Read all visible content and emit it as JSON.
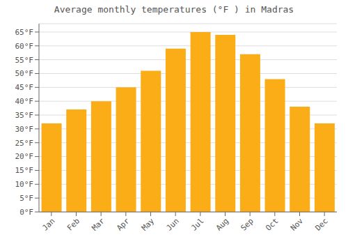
{
  "chart_data": {
    "type": "bar",
    "title": "Average monthly temperatures (°F ) in Madras",
    "categories": [
      "Jan",
      "Feb",
      "Mar",
      "Apr",
      "May",
      "Jun",
      "Jul",
      "Aug",
      "Sep",
      "Oct",
      "Nov",
      "Dec"
    ],
    "values": [
      32,
      37,
      40,
      45,
      51,
      59,
      65,
      64,
      57,
      48,
      38,
      32
    ],
    "color": "#FBAD18",
    "ylim": [
      0,
      68
    ],
    "yticks": [
      {
        "value": 0,
        "label": "0°F"
      },
      {
        "value": 5,
        "label": "5°F"
      },
      {
        "value": 10,
        "label": "10°F"
      },
      {
        "value": 15,
        "label": "15°F"
      },
      {
        "value": 20,
        "label": "20°F"
      },
      {
        "value": 25,
        "label": "25°F"
      },
      {
        "value": 30,
        "label": "30°F"
      },
      {
        "value": 35,
        "label": "35°F"
      },
      {
        "value": 40,
        "label": "40°F"
      },
      {
        "value": 45,
        "label": "45°F"
      },
      {
        "value": 50,
        "label": "50°F"
      },
      {
        "value": 55,
        "label": "55°F"
      },
      {
        "value": 60,
        "label": "60°F"
      },
      {
        "value": 65,
        "label": "65°F"
      }
    ],
    "grid": true
  }
}
